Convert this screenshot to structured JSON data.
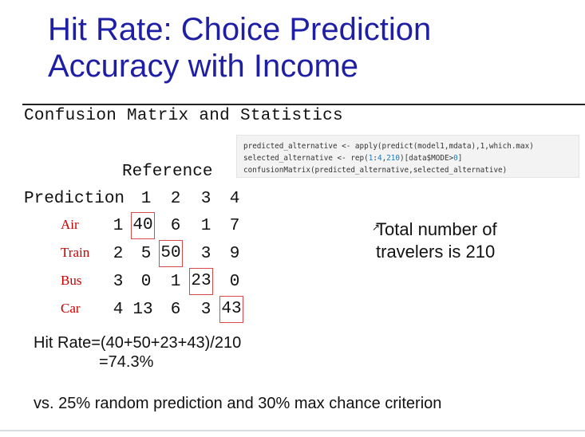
{
  "title_line1": "Hit Rate: Choice Prediction",
  "title_line2": "Accuracy with Income",
  "matrix_header": "Confusion Matrix and Statistics",
  "code": {
    "line1": "predicted_alternative <- apply(predict(model1,mdata),1,which.max)",
    "line2a": "selected_alternative <- rep(",
    "line2_num1": "1",
    "line2b": ":",
    "line2_num2": "4",
    "line2c": ",",
    "line2_num3": "210",
    "line2d": ")[data$MODE>",
    "line2_num4": "0",
    "line2e": "]",
    "line3": "confusionMatrix(predicted_alternative,selected_alternative)"
  },
  "matrix": {
    "reference_label": "Reference",
    "prediction_label": "Prediction",
    "columns": [
      "1",
      "2",
      "3",
      "4"
    ],
    "rows": [
      {
        "name": "Air",
        "index": "1",
        "values": [
          "40",
          "6",
          "1",
          "7"
        ]
      },
      {
        "name": "Train",
        "index": "2",
        "values": [
          "5",
          "50",
          "3",
          "9"
        ]
      },
      {
        "name": "Bus",
        "index": "3",
        "values": [
          "0",
          "1",
          "23",
          "0"
        ]
      },
      {
        "name": "Car",
        "index": "4",
        "values": [
          "13",
          "6",
          "3",
          "43"
        ]
      }
    ]
  },
  "side_note_line1": "Total number of",
  "side_note_line2": "travelers is 210",
  "hit_rate_line1": "Hit Rate=(40+50+23+43)/210",
  "hit_rate_line2": "=74.3%",
  "footer": "vs. 25% random prediction and 30% max chance criterion",
  "colors": {
    "title": "#1f1fa6",
    "row_names": "#c80000",
    "diag_box": "#d84a4a"
  }
}
